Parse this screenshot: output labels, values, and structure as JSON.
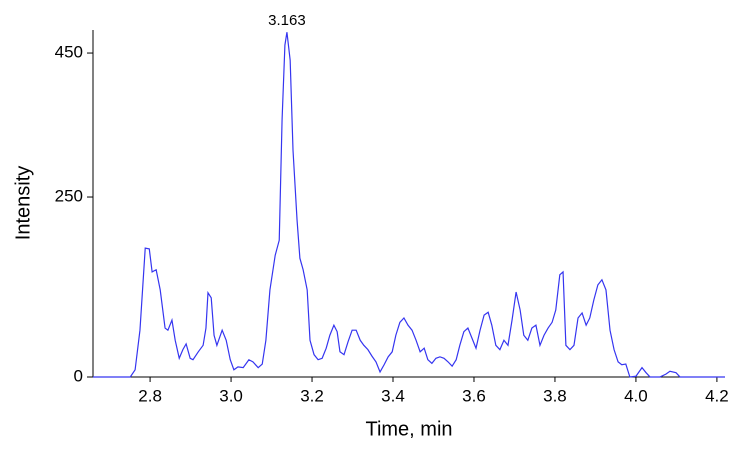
{
  "chart_data": {
    "type": "line",
    "xlabel": "Time, min",
    "ylabel": "Intensity",
    "annotations": [
      {
        "text": "3.163"
      }
    ],
    "xlim": [
      2.659,
      4.22
    ],
    "ylim": [
      0,
      482
    ],
    "xticks": [
      2.8,
      {
        "value": 3,
        "label": "3.0"
      },
      3.2,
      3.4,
      3.6,
      3.8,
      {
        "value": 4,
        "label": "4.0"
      },
      4.2
    ],
    "yticks": [
      0,
      250,
      450
    ],
    "x": [
      2.659,
      2.751,
      2.763,
      2.775,
      2.788,
      2.798,
      2.805,
      2.815,
      2.825,
      2.837,
      2.844,
      2.854,
      2.862,
      2.872,
      2.881,
      2.889,
      2.899,
      2.906,
      2.919,
      2.931,
      2.938,
      2.943,
      2.951,
      2.958,
      2.965,
      2.978,
      2.988,
      2.998,
      3.007,
      3.017,
      3.03,
      3.044,
      3.054,
      3.067,
      3.077,
      3.086,
      3.096,
      3.109,
      3.119,
      3.126,
      3.133,
      3.138,
      3.146,
      3.153,
      3.163,
      3.17,
      3.178,
      3.188,
      3.195,
      3.205,
      3.215,
      3.225,
      3.235,
      3.244,
      3.254,
      3.262,
      3.269,
      3.279,
      3.289,
      3.299,
      3.309,
      3.319,
      3.328,
      3.338,
      3.348,
      3.358,
      3.368,
      3.378,
      3.388,
      3.398,
      3.407,
      3.417,
      3.427,
      3.437,
      3.447,
      3.457,
      3.467,
      3.477,
      3.486,
      3.496,
      3.506,
      3.516,
      3.526,
      3.536,
      3.546,
      3.556,
      3.565,
      3.575,
      3.585,
      3.595,
      3.605,
      3.615,
      3.625,
      3.635,
      3.644,
      3.654,
      3.664,
      3.674,
      3.684,
      3.694,
      3.704,
      3.714,
      3.723,
      3.733,
      3.743,
      3.753,
      3.763,
      3.773,
      3.783,
      3.793,
      3.802,
      3.812,
      3.82,
      3.827,
      3.837,
      3.847,
      3.857,
      3.867,
      3.877,
      3.886,
      3.896,
      3.906,
      3.916,
      3.926,
      3.936,
      3.946,
      3.956,
      3.965,
      3.975,
      3.985,
      4.0,
      4.015,
      4.025,
      4.035,
      4.059,
      4.074,
      4.084,
      4.099,
      4.109,
      4.22
    ],
    "series": [
      {
        "color": "#3535f0",
        "values": [
          0,
          0,
          10,
          65,
          179,
          178,
          146,
          149,
          121,
          68,
          65,
          79,
          51,
          26,
          38,
          46,
          26,
          24,
          35,
          44,
          68,
          117,
          110,
          58,
          44,
          65,
          51,
          24,
          10,
          14,
          13,
          24,
          21,
          13,
          18,
          51,
          121,
          169,
          190,
          357,
          461,
          479,
          440,
          315,
          218,
          165,
          149,
          121,
          51,
          31,
          24,
          26,
          40,
          58,
          72,
          63,
          35,
          31,
          49,
          65,
          65,
          51,
          44,
          38,
          29,
          21,
          7,
          17,
          28,
          35,
          58,
          76,
          82,
          72,
          65,
          51,
          35,
          40,
          24,
          19,
          26,
          28,
          26,
          21,
          15,
          24,
          44,
          63,
          68,
          54,
          40,
          65,
          86,
          90,
          72,
          44,
          38,
          51,
          44,
          79,
          118,
          93,
          58,
          51,
          68,
          72,
          44,
          58,
          68,
          76,
          93,
          142,
          146,
          44,
          38,
          44,
          82,
          89,
          72,
          82,
          107,
          128,
          135,
          121,
          65,
          38,
          21,
          17,
          18,
          0,
          1,
          13,
          6,
          0,
          0,
          4,
          8,
          6,
          0,
          0
        ]
      }
    ]
  }
}
